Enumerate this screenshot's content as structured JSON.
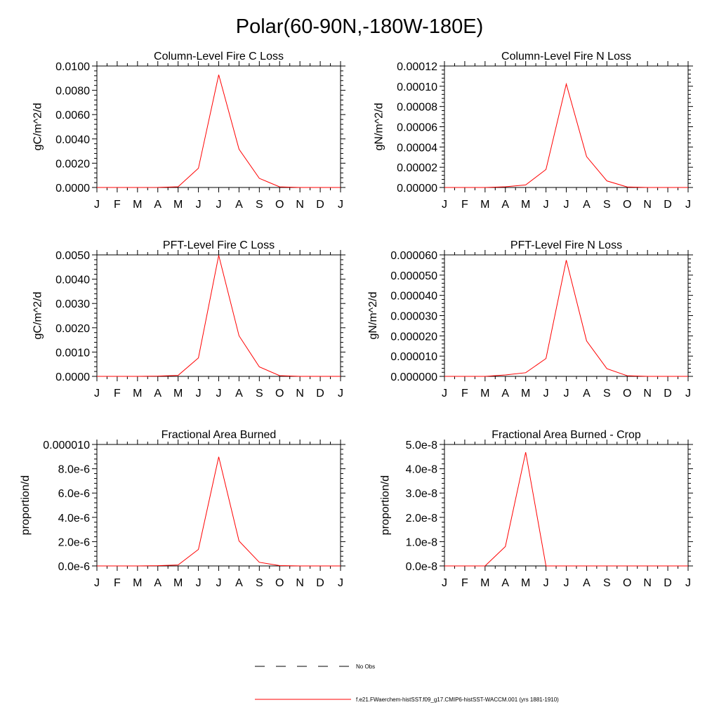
{
  "figure": {
    "title": "Polar(60-90N,-180W-180E)"
  },
  "legend": {
    "items": [
      {
        "label": "No Obs",
        "color": "#000000",
        "dashed": true
      },
      {
        "label": "f.e21.FWaerchem-histSST.f09_g17.CMIP6-histSST-WACCM.001 (yrs 1881-1910)",
        "color": "#ff0000",
        "dashed": false
      }
    ]
  },
  "chart_data": [
    {
      "type": "line",
      "title": "Column-Level Fire C Loss",
      "ylabel": "gC/m^2/d",
      "xlabel": "",
      "categories": [
        "J",
        "F",
        "M",
        "A",
        "M",
        "J",
        "J",
        "A",
        "S",
        "O",
        "N",
        "D",
        "J"
      ],
      "ylim": [
        0,
        0.01
      ],
      "yticks": [
        "0.0000",
        "0.0020",
        "0.0040",
        "0.0060",
        "0.0080",
        "0.0100"
      ],
      "series": [
        {
          "color": "#ff0000",
          "values": [
            0,
            0,
            0,
            1e-05,
            6e-05,
            0.00158,
            0.00928,
            0.00315,
            0.00075,
            5e-05,
            0,
            0,
            0
          ]
        }
      ]
    },
    {
      "type": "line",
      "title": "Column-Level Fire N Loss",
      "ylabel": "gN/m^2/d",
      "xlabel": "",
      "categories": [
        "J",
        "F",
        "M",
        "A",
        "M",
        "J",
        "J",
        "A",
        "S",
        "O",
        "N",
        "D",
        "J"
      ],
      "ylim": [
        0,
        0.00012
      ],
      "yticks": [
        "0.00000",
        "0.00002",
        "0.00004",
        "0.00006",
        "0.00008",
        "0.00010",
        "0.00012"
      ],
      "series": [
        {
          "color": "#ff0000",
          "values": [
            0,
            0,
            0,
            7e-07,
            2.5e-06,
            1.78e-05,
            0.0001022,
            3.05e-05,
            6.5e-06,
            5e-07,
            0,
            0,
            0
          ]
        }
      ]
    },
    {
      "type": "line",
      "title": "PFT-Level Fire C Loss",
      "ylabel": "gC/m^2/d",
      "xlabel": "",
      "categories": [
        "J",
        "F",
        "M",
        "A",
        "M",
        "J",
        "J",
        "A",
        "S",
        "O",
        "N",
        "D",
        "J"
      ],
      "ylim": [
        0,
        0.005
      ],
      "yticks": [
        "0.0000",
        "0.0010",
        "0.0020",
        "0.0030",
        "0.0040",
        "0.0050"
      ],
      "series": [
        {
          "color": "#ff0000",
          "values": [
            0,
            0,
            0,
            1e-05,
            4e-05,
            0.00076,
            0.00498,
            0.00167,
            0.00039,
            3e-05,
            0,
            0,
            0
          ]
        }
      ]
    },
    {
      "type": "line",
      "title": "PFT-Level Fire N Loss",
      "ylabel": "gN/m^2/d",
      "xlabel": "",
      "categories": [
        "J",
        "F",
        "M",
        "A",
        "M",
        "J",
        "J",
        "A",
        "S",
        "O",
        "N",
        "D",
        "J"
      ],
      "ylim": [
        0,
        6e-05
      ],
      "yticks": [
        "0.000000",
        "0.000010",
        "0.000020",
        "0.000030",
        "0.000040",
        "0.000050",
        "0.000060"
      ],
      "series": [
        {
          "color": "#ff0000",
          "values": [
            0,
            0,
            0,
            7e-07,
            1.8e-06,
            8.8e-06,
            5.74e-05,
            1.75e-05,
            3.8e-06,
            3e-07,
            0,
            0,
            0
          ]
        }
      ]
    },
    {
      "type": "line",
      "title": "Fractional Area Burned",
      "ylabel": "proportion/d",
      "xlabel": "",
      "categories": [
        "J",
        "F",
        "M",
        "A",
        "M",
        "J",
        "J",
        "A",
        "S",
        "O",
        "N",
        "D",
        "J"
      ],
      "ylim": [
        0,
        1e-05
      ],
      "yticks": [
        "0.0e-6",
        "2.0e-6",
        "4.0e-6",
        "6.0e-6",
        "8.0e-6",
        "0.000010"
      ],
      "series": [
        {
          "color": "#ff0000",
          "values": [
            0,
            0,
            0,
            2e-08,
            8e-08,
            1.36e-06,
            8.98e-06,
            2.05e-06,
            3e-07,
            3e-08,
            0,
            0,
            0
          ]
        }
      ]
    },
    {
      "type": "line",
      "title": "Fractional Area Burned - Crop",
      "ylabel": "proportion/d",
      "xlabel": "",
      "categories": [
        "J",
        "F",
        "M",
        "A",
        "M",
        "J",
        "J",
        "A",
        "S",
        "O",
        "N",
        "D",
        "J"
      ],
      "ylim": [
        0,
        5e-08
      ],
      "yticks": [
        "0.0e-8",
        "1.0e-8",
        "2.0e-8",
        "3.0e-8",
        "4.0e-8",
        "5.0e-8"
      ],
      "series": [
        {
          "color": "#ff0000",
          "values": [
            0,
            0,
            0,
            8e-09,
            4.68e-08,
            0,
            0,
            0,
            0,
            0,
            0,
            0,
            0
          ]
        }
      ]
    }
  ]
}
